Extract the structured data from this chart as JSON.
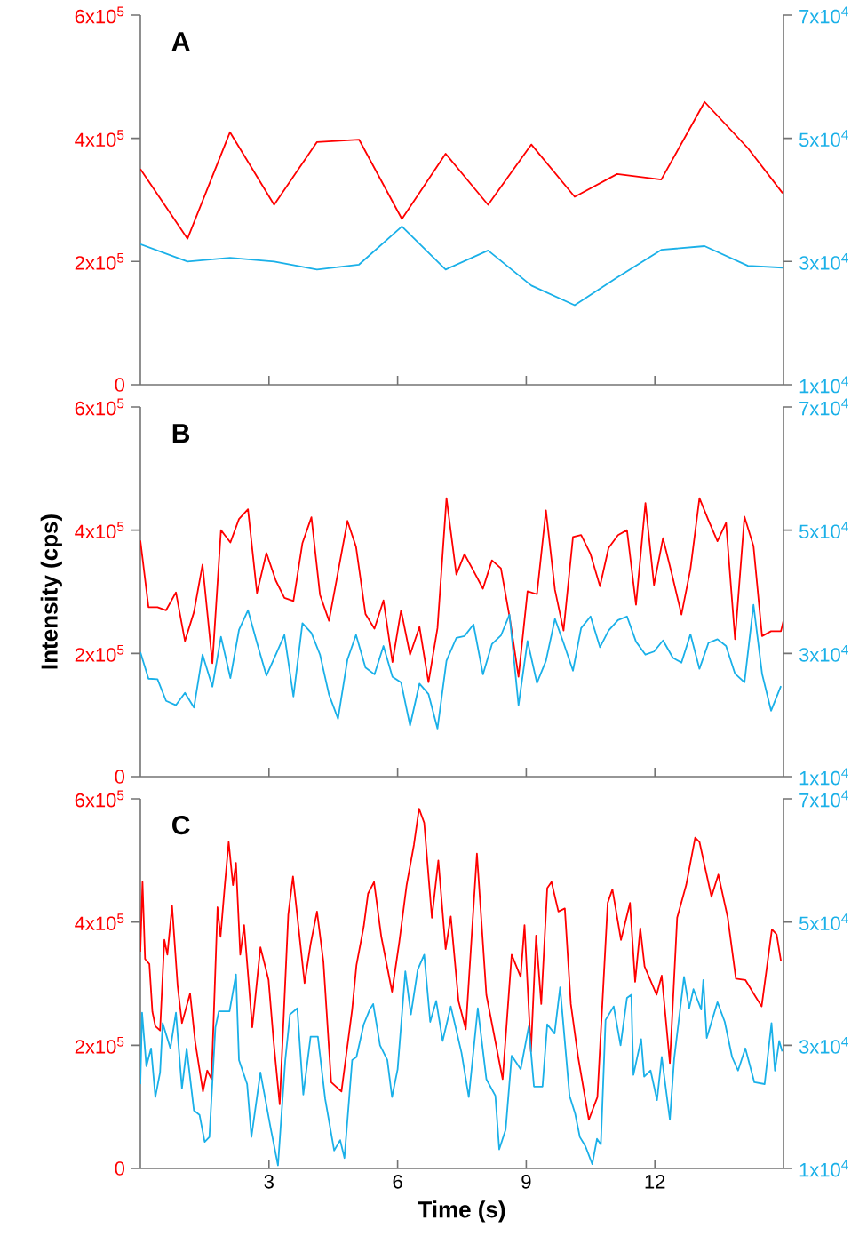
{
  "chart_data": [
    {
      "type": "line",
      "title": "A",
      "tick_labels": "y",
      "xlim": [
        0,
        15
      ],
      "xticks": [
        {
          "value": 3,
          "label": null
        },
        {
          "value": 6,
          "label": null
        },
        {
          "value": 9,
          "label": null
        },
        {
          "value": 12,
          "label": null
        }
      ],
      "ylim": [
        0,
        600000.0
      ],
      "yticks": [
        0,
        {
          "value": 200000.0,
          "label": "2x10$^{5}$"
        },
        {
          "value": 400000.0,
          "label": "4x10$^{5}$"
        },
        {
          "value": 600000.0,
          "label": "6x10$^{5}$"
        }
      ],
      "y2lim": [
        10000.0,
        70000.0
      ],
      "y2ticks": [
        {
          "value": 10000.0,
          "label": "1x10$^{4}$"
        },
        {
          "value": 30000.0,
          "label": "3x10$^{4}$"
        },
        {
          "value": 50000.0,
          "label": "5x10$^{4}$"
        },
        {
          "value": 70000.0,
          "label": "7x10$^{4}$"
        }
      ],
      "series": [
        {
          "color": "#ff0000",
          "x": [
            0,
            1.1,
            2.09,
            3.12,
            4.12,
            5.1,
            6.1,
            7.12,
            8.11,
            9.12,
            10.13,
            11.12,
            12.15,
            13.16,
            14.17,
            14.98
          ],
          "values": [
            350000.0,
            237000.0,
            410000.0,
            292000.0,
            394000.0,
            398000.0,
            269000.0,
            375000.0,
            292000.0,
            390000.0,
            305000.0,
            342000.0,
            333000.0,
            459000.0,
            384000.0,
            311000.0
          ]
        },
        {
          "color": "#1ab0e8",
          "axis": "y2",
          "x": [
            0,
            1.1,
            2.09,
            3.12,
            4.12,
            5.1,
            6.1,
            7.12,
            8.11,
            9.12,
            10.13,
            11.12,
            12.15,
            13.16,
            14.17,
            14.98
          ],
          "values": [
            32800.0,
            30000.0,
            30600.0,
            30000.0,
            28700.0,
            29500.0,
            35700.0,
            28700.0,
            31800.0,
            26100.0,
            22900.0,
            27400.0,
            31900.0,
            32500.0,
            29300.0,
            29000.0
          ]
        }
      ]
    },
    {
      "type": "line",
      "title": "B",
      "tick_labels": "y",
      "ylabel": "Intensity (cps)",
      "xlim": [
        0,
        15
      ],
      "xticks": [
        {
          "value": 3,
          "label": null
        },
        {
          "value": 6,
          "label": null
        },
        {
          "value": 9,
          "label": null
        },
        {
          "value": 12,
          "label": null
        }
      ],
      "ylim": [
        0,
        600000.0
      ],
      "yticks": [
        0,
        {
          "value": 200000.0,
          "label": "2x10$^{5}$"
        },
        {
          "value": 400000.0,
          "label": "4x10$^{5}$"
        },
        {
          "value": 600000.0,
          "label": "6x10$^{5}$"
        }
      ],
      "y2lim": [
        10000.0,
        70000.0
      ],
      "y2ticks": [
        {
          "value": 10000.0,
          "label": "1x10$^{4}$"
        },
        {
          "value": 30000.0,
          "label": "3x10$^{4}$"
        },
        {
          "value": 50000.0,
          "label": "5x10$^{4}$"
        },
        {
          "value": 70000.0,
          "label": "7x10$^{4}$"
        }
      ],
      "series": [
        {
          "color": "#ff0000",
          "x": [
            0,
            0.19,
            0.4,
            0.6,
            0.83,
            1.04,
            1.25,
            1.45,
            1.68,
            1.88,
            2.1,
            2.3,
            2.51,
            2.72,
            2.94,
            3.16,
            3.36,
            3.57,
            3.78,
            3.99,
            4.19,
            4.4,
            4.61,
            4.83,
            5.03,
            5.25,
            5.46,
            5.67,
            5.88,
            6.08,
            6.29,
            6.51,
            6.72,
            6.93,
            7.14,
            7.37,
            7.56,
            7.77,
            7.99,
            8.2,
            8.41,
            8.61,
            8.82,
            9.03,
            9.25,
            9.46,
            9.67,
            9.87,
            10.09,
            10.28,
            10.5,
            10.72,
            10.92,
            11.14,
            11.35,
            11.56,
            11.78,
            11.98,
            12.19,
            12.42,
            12.62,
            12.83,
            13.04,
            13.25,
            13.46,
            13.66,
            13.87,
            14.09,
            14.3,
            14.5,
            14.71,
            14.94,
            15.0
          ],
          "values": [
            383000.0,
            275000.0,
            275000.0,
            270000.0,
            299000.0,
            220000.0,
            267000.0,
            344000.0,
            184000.0,
            400000.0,
            380000.0,
            418000.0,
            434000.0,
            298000.0,
            363000.0,
            318000.0,
            290000.0,
            285000.0,
            379000.0,
            421000.0,
            295000.0,
            253000.0,
            332000.0,
            415000.0,
            373000.0,
            264000.0,
            240000.0,
            286000.0,
            186000.0,
            270000.0,
            198000.0,
            243000.0,
            153000.0,
            241000.0,
            452000.0,
            328000.0,
            361000.0,
            334000.0,
            305000.0,
            351000.0,
            338000.0,
            260000.0,
            162000.0,
            301000.0,
            296000.0,
            432000.0,
            303000.0,
            237000.0,
            389000.0,
            392000.0,
            361000.0,
            309000.0,
            371000.0,
            392000.0,
            400000.0,
            279000.0,
            444000.0,
            311000.0,
            387000.0,
            322000.0,
            263000.0,
            337000.0,
            452000.0,
            416000.0,
            382000.0,
            412000.0,
            223000.0,
            422000.0,
            374000.0,
            228000.0,
            236000.0,
            236000.0,
            253000.0
          ]
        },
        {
          "color": "#1ab0e8",
          "axis": "y2",
          "x": [
            0,
            0.19,
            0.4,
            0.6,
            0.83,
            1.04,
            1.25,
            1.45,
            1.68,
            1.88,
            2.1,
            2.3,
            2.51,
            2.72,
            2.94,
            3.16,
            3.36,
            3.57,
            3.78,
            3.99,
            4.19,
            4.4,
            4.61,
            4.83,
            5.03,
            5.25,
            5.46,
            5.67,
            5.88,
            6.08,
            6.29,
            6.51,
            6.72,
            6.93,
            7.14,
            7.37,
            7.56,
            7.77,
            7.99,
            8.2,
            8.41,
            8.61,
            8.82,
            9.03,
            9.25,
            9.46,
            9.67,
            9.87,
            10.09,
            10.28,
            10.5,
            10.72,
            10.92,
            11.14,
            11.35,
            11.56,
            11.78,
            11.98,
            12.19,
            12.42,
            12.62,
            12.83,
            13.04,
            13.25,
            13.46,
            13.66,
            13.87,
            14.09,
            14.3,
            14.5,
            14.71,
            14.94
          ],
          "values": [
            30200.0,
            25900.0,
            25800.0,
            22300.0,
            21600.0,
            23600.0,
            21200.0,
            29800.0,
            24600.0,
            32700.0,
            26000.0,
            33800.0,
            37000.0,
            31700.0,
            26400.0,
            29800.0,
            33000.0,
            23000.0,
            34900.0,
            33300.0,
            29800.0,
            23300.0,
            19400.0,
            29000.0,
            33000.0,
            27700.0,
            26600.0,
            31200.0,
            26200.0,
            25300.0,
            18300.0,
            25100.0,
            23400.0,
            17800.0,
            28800.0,
            32500.0,
            32800.0,
            34700.0,
            26600.0,
            31500.0,
            32900.0,
            36300.0,
            21600.0,
            32000.0,
            25200.0,
            28800.0,
            35600.0,
            31700.0,
            27200.0,
            34100.0,
            36000.0,
            31000.0,
            33700.0,
            35400.0,
            36000.0,
            31900.0,
            29800.0,
            30300.0,
            32100.0,
            29300.0,
            28500.0,
            33100.0,
            27500.0,
            31700.0,
            32300.0,
            31200.0,
            26700.0,
            25300.0,
            37900.0,
            26700.0,
            20700.0,
            24700.0
          ]
        }
      ]
    },
    {
      "type": "line",
      "title": "C",
      "xlabel": "Time (s)",
      "xlim": [
        0,
        15
      ],
      "xticks": [
        3,
        6,
        9,
        12
      ],
      "ylim": [
        0,
        600000.0
      ],
      "yticks": [
        0,
        {
          "value": 200000.0,
          "label": "2x10$^{5}$"
        },
        {
          "value": 400000.0,
          "label": "4x10$^{5}$"
        },
        {
          "value": 600000.0,
          "label": "6x10$^{5}$"
        }
      ],
      "y2lim": [
        10000.0,
        70000.0
      ],
      "y2ticks": [
        {
          "value": 10000.0,
          "label": "1x10$^{4}$"
        },
        {
          "value": 30000.0,
          "label": "3x10$^{4}$"
        },
        {
          "value": 50000.0,
          "label": "5x10$^{4}$"
        },
        {
          "value": 70000.0,
          "label": "7x10$^{4}$"
        }
      ],
      "series": [
        {
          "color": "#ff0000",
          "x": [
            0,
            0.05,
            0.11,
            0.21,
            0.28,
            0.35,
            0.46,
            0.56,
            0.63,
            0.74,
            0.87,
            0.97,
            1.16,
            1.28,
            1.46,
            1.56,
            1.66,
            1.8,
            1.87,
            1.97,
            2.06,
            2.16,
            2.23,
            2.33,
            2.42,
            2.61,
            2.8,
            2.99,
            3.11,
            3.25,
            3.45,
            3.56,
            3.83,
            3.97,
            4.12,
            4.27,
            4.45,
            4.69,
            4.94,
            5.04,
            5.21,
            5.31,
            5.45,
            5.62,
            5.87,
            6.04,
            6.21,
            6.38,
            6.5,
            6.62,
            6.8,
            6.95,
            7.12,
            7.24,
            7.42,
            7.59,
            7.85,
            8.07,
            8.45,
            8.66,
            8.87,
            8.96,
            9.11,
            9.23,
            9.35,
            9.49,
            9.59,
            9.75,
            9.9,
            10.04,
            10.21,
            10.46,
            10.66,
            10.9,
            11.01,
            11.21,
            11.42,
            11.54,
            11.66,
            11.76,
            12.04,
            12.16,
            12.35,
            12.52,
            12.73,
            12.94,
            13.04,
            13.32,
            13.48,
            13.7,
            13.89,
            14.11,
            14.32,
            14.49,
            14.73,
            14.84,
            14.94
          ],
          "values": [
            352000.0,
            465000.0,
            340000.0,
            332000.0,
            255000.0,
            231000.0,
            224000.0,
            371000.0,
            347000.0,
            426000.0,
            296000.0,
            236000.0,
            284000.0,
            205000.0,
            125000.0,
            159000.0,
            145000.0,
            424000.0,
            376000.0,
            460000.0,
            530000.0,
            460000.0,
            496000.0,
            347000.0,
            395000.0,
            229000.0,
            359000.0,
            306000.0,
            205000.0,
            104000.0,
            412000.0,
            474000.0,
            301000.0,
            364000.0,
            417000.0,
            335000.0,
            140000.0,
            125000.0,
            258000.0,
            330000.0,
            393000.0,
            446000.0,
            465000.0,
            376000.0,
            287000.0,
            368000.0,
            460000.0,
            525000.0,
            584000.0,
            561000.0,
            407000.0,
            500000.0,
            356000.0,
            409000.0,
            272000.0,
            226000.0,
            511000.0,
            282000.0,
            145000.0,
            347000.0,
            311000.0,
            395000.0,
            190000.0,
            378000.0,
            267000.0,
            455000.0,
            465000.0,
            417000.0,
            422000.0,
            267000.0,
            181000.0,
            79000.0,
            116000.0,
            431000.0,
            453000.0,
            371000.0,
            431000.0,
            303000.0,
            390000.0,
            328000.0,
            282000.0,
            313000.0,
            171000.0,
            407000.0,
            460000.0,
            537000.0,
            530000.0,
            441000.0,
            477000.0,
            407000.0,
            308000.0,
            306000.0,
            282000.0,
            263000.0,
            388000.0,
            380000.0,
            337000.0
          ]
        },
        {
          "color": "#1ab0e8",
          "axis": "y2",
          "x": [
            0,
            0.04,
            0.14,
            0.25,
            0.35,
            0.46,
            0.52,
            0.7,
            0.83,
            0.97,
            1.08,
            1.25,
            1.38,
            1.5,
            1.61,
            1.75,
            1.83,
            2.08,
            2.23,
            2.3,
            2.49,
            2.59,
            2.8,
            3.04,
            3.21,
            3.38,
            3.49,
            3.66,
            3.8,
            3.97,
            4.14,
            4.31,
            4.52,
            4.66,
            4.76,
            4.94,
            5.04,
            5.21,
            5.35,
            5.43,
            5.59,
            5.76,
            5.87,
            6.0,
            6.18,
            6.31,
            6.47,
            6.62,
            6.76,
            6.9,
            7.05,
            7.24,
            7.49,
            7.66,
            7.87,
            8.07,
            8.28,
            8.37,
            8.52,
            8.66,
            8.87,
            9.06,
            9.18,
            9.38,
            9.49,
            9.66,
            9.79,
            10.01,
            10.14,
            10.25,
            10.38,
            10.54,
            10.65,
            10.74,
            10.85,
            11.04,
            11.2,
            11.35,
            11.45,
            11.5,
            11.68,
            11.75,
            11.9,
            12.05,
            12.16,
            12.35,
            12.45,
            12.68,
            12.8,
            12.9,
            13.08,
            13.13,
            13.21,
            13.46,
            13.63,
            13.8,
            13.94,
            14.11,
            14.32,
            14.56,
            14.72,
            14.8,
            14.9,
            14.97
          ],
          "values": [
            23700.0,
            35300.0,
            26600.0,
            29500.0,
            21600.0,
            25600.0,
            33600.0,
            29500.0,
            35300.0,
            23000.0,
            29500.0,
            19400.0,
            18700.0,
            14300.0,
            15100.0,
            32900.0,
            35500.0,
            35500.0,
            41500.0,
            27600.0,
            23700.0,
            15100.0,
            25600.0,
            16500.0,
            10500.0,
            27600.0,
            35000.0,
            36000.0,
            22000.0,
            31400.0,
            31400.0,
            21300.0,
            12900.0,
            14600.0,
            11700.0,
            27600.0,
            28100.0,
            33400.0,
            35800.0,
            36700.0,
            30000.0,
            27600.0,
            21600.0,
            26100.0,
            42000.0,
            35000.0,
            42300.0,
            44700.0,
            33800.0,
            37200.0,
            30700.0,
            36300.0,
            28800.0,
            21600.0,
            36000.0,
            24500.0,
            21800.0,
            13100.0,
            16300.0,
            28300.0,
            26100.0,
            33100.0,
            23300.0,
            23300.0,
            33400.0,
            31900.0,
            39400.0,
            21800.0,
            18900.0,
            15100.0,
            13600.0,
            10700.0,
            14800.0,
            13900.0,
            34100.0,
            36300.0,
            30000.0,
            37700.0,
            38200.0,
            25200.0,
            31000.0,
            24900.0,
            25900.0,
            21100.0,
            28100.0,
            17900.0,
            27800.0,
            41100.0,
            36000.0,
            39100.0,
            35800.0,
            40600.0,
            31200.0,
            37000.0,
            33800.0,
            28100.0,
            25900.0,
            29500.0,
            24000.0,
            23700.0,
            33600.0,
            25900.0,
            30700.0,
            29000.0
          ]
        }
      ]
    }
  ]
}
